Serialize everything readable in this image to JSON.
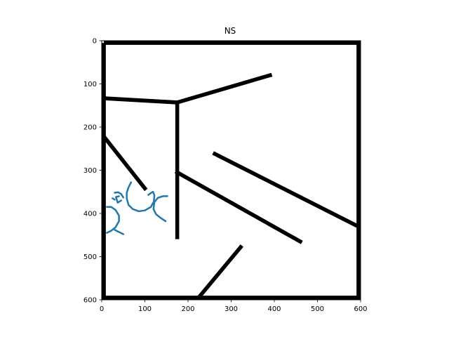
{
  "chart_data": {
    "type": "line",
    "title": "NS",
    "xlabel": "",
    "ylabel": "",
    "xlim": [
      0,
      600
    ],
    "ylim": [
      600,
      0
    ],
    "y_inverted": true,
    "grid": false,
    "x_ticks": [
      0,
      100,
      200,
      300,
      400,
      500,
      600
    ],
    "y_ticks": [
      0,
      100,
      200,
      300,
      400,
      500,
      600
    ],
    "background_image": {
      "description_color": "#000000",
      "border": [
        [
          5,
          5
        ],
        [
          595,
          5
        ],
        [
          595,
          595
        ],
        [
          5,
          595
        ],
        [
          5,
          5
        ]
      ],
      "walls": [
        [
          [
            0,
            133
          ],
          [
            175,
            143
          ],
          [
            390,
            80
          ]
        ],
        [
          [
            175,
            143
          ],
          [
            175,
            455
          ]
        ],
        [
          [
            5,
            222
          ],
          [
            100,
            342
          ]
        ],
        [
          [
            175,
            305
          ],
          [
            460,
            465
          ]
        ],
        [
          [
            262,
            262
          ],
          [
            598,
            432
          ]
        ],
        [
          [
            222,
            598
          ],
          [
            322,
            478
          ]
        ]
      ],
      "wall_width": 9
    },
    "series": [
      {
        "color": "#1f77b4",
        "curves": [
          [
            [
              68,
              328
            ],
            [
              62,
              340
            ],
            [
              58,
              352
            ],
            [
              58,
              365
            ],
            [
              62,
              380
            ],
            [
              72,
              390
            ],
            [
              86,
              395
            ],
            [
              100,
              393
            ],
            [
              114,
              385
            ],
            [
              121,
              372
            ],
            [
              122,
              358
            ],
            [
              119,
              350
            ]
          ],
          [
            [
              50,
              363
            ],
            [
              45,
              355
            ],
            [
              38,
              351
            ],
            [
              30,
              352
            ]
          ],
          [
            [
              25,
              365
            ],
            [
              30,
              368
            ]
          ],
          [
            [
              45,
              370
            ],
            [
              37,
              375
            ],
            [
              33,
              362
            ],
            [
              40,
              360
            ]
          ],
          [
            [
              12,
              385
            ],
            [
              22,
              385
            ],
            [
              32,
              392
            ],
            [
              40,
              405
            ],
            [
              40,
              418
            ],
            [
              32,
              432
            ],
            [
              22,
              440
            ],
            [
              12,
              445
            ]
          ],
          [
            [
              30,
              438
            ],
            [
              38,
              442
            ],
            [
              50,
              448
            ]
          ],
          [
            [
              108,
              357
            ],
            [
              118,
              350
            ]
          ],
          [
            [
              152,
              360
            ],
            [
              142,
              360
            ],
            [
              130,
              364
            ],
            [
              122,
              374
            ],
            [
              120,
              390
            ],
            [
              126,
              402
            ],
            [
              136,
              410
            ],
            [
              148,
              418
            ]
          ]
        ]
      }
    ]
  }
}
